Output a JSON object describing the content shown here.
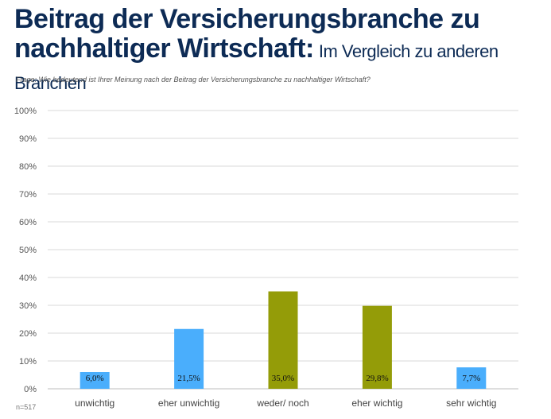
{
  "header": {
    "title_line1": "Beitrag der Versicherungsbranche zu",
    "title_line2": "nachhaltiger Wirtschaft:",
    "subtitle": "Im Vergleich zu anderen Branchen",
    "question": "Frage: Wie bedeutend ist Ihrer Meinung nach der Beitrag der Versicherungsbranche zu nachhaltiger Wirtschaft?"
  },
  "footnote": "n=517",
  "chart_data": {
    "type": "bar",
    "title": "Beitrag der Versicherungsbranche zu nachhaltiger Wirtschaft: Im Vergleich zu anderen Branchen",
    "categories": [
      "unwichtig",
      "eher unwichtig",
      "weder/ noch",
      "eher wichtig",
      "sehr wichtig"
    ],
    "values": [
      6.0,
      21.5,
      35.0,
      29.8,
      7.7
    ],
    "data_labels": [
      "6,0%",
      "21,5%",
      "35,0%",
      "29,8%",
      "7,7%"
    ],
    "colors": [
      "#4aaefc",
      "#4aaefc",
      "#949c08",
      "#949c08",
      "#4aaefc"
    ],
    "ylim": [
      0,
      100
    ],
    "yticks": [
      "0%",
      "10%",
      "20%",
      "30%",
      "40%",
      "50%",
      "60%",
      "70%",
      "80%",
      "90%",
      "100%"
    ],
    "xlabel": "",
    "ylabel": "",
    "grid": true,
    "legend": "none"
  }
}
